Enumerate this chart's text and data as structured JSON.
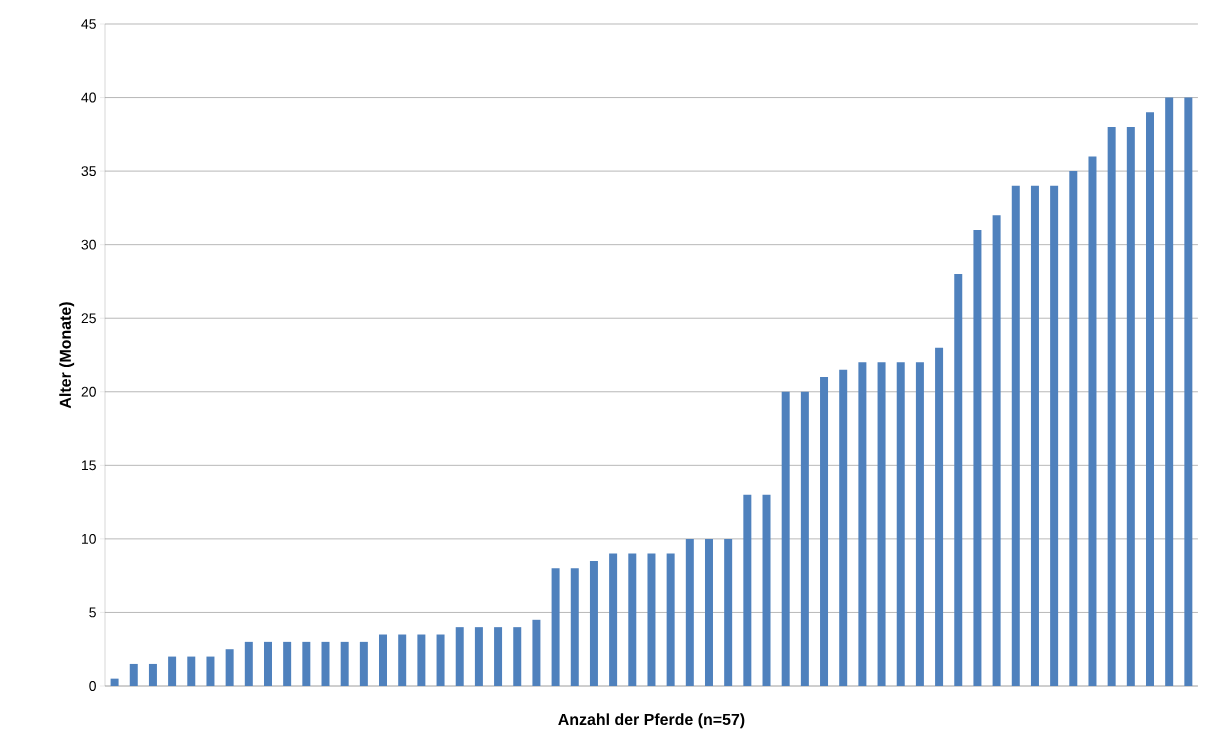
{
  "chart_data": {
    "type": "bar",
    "xlabel": "Anzahl der Pferde (n=57)",
    "ylabel": "Alter (Monate)",
    "categories": [
      null,
      null,
      null,
      null,
      null,
      null,
      null,
      null,
      null,
      null,
      null,
      null,
      null,
      null,
      null,
      null,
      null,
      null,
      null,
      null,
      null,
      null,
      null,
      null,
      null,
      null,
      null,
      null,
      null,
      null,
      null,
      null,
      null,
      null,
      null,
      null,
      null,
      null,
      null,
      null,
      null,
      null,
      null,
      null,
      null,
      null,
      null,
      null,
      null,
      null,
      null,
      null,
      null,
      null,
      null,
      null,
      null
    ],
    "values": [
      0.5,
      1.5,
      1.5,
      2,
      2,
      2,
      2.5,
      3,
      3,
      3,
      3,
      3,
      3,
      3,
      3.5,
      3.5,
      3.5,
      3.5,
      4,
      4,
      4,
      4,
      4.5,
      8,
      8,
      8.5,
      9,
      9,
      9,
      9,
      10,
      10,
      10,
      13,
      13,
      20,
      20,
      21,
      21.5,
      22,
      22,
      22,
      22,
      23,
      28,
      31,
      32,
      34,
      34,
      34,
      35,
      36,
      38,
      38,
      39,
      40,
      40
    ],
    "color": "#4f81bd",
    "ylim": [
      0,
      45
    ],
    "yticks": [
      0,
      5,
      10,
      15,
      20,
      25,
      30,
      35,
      40,
      45
    ],
    "grid": "y",
    "tick_labels": "y"
  }
}
